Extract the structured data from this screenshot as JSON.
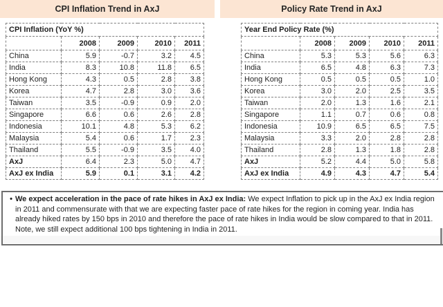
{
  "colors": {
    "header_bg": "#fce5d3",
    "table_border": "#7f7f7f",
    "note_border": "#6e6e6e",
    "text": "#1f1f1f"
  },
  "panels": [
    {
      "header": "CPI Inflation Trend in AxJ",
      "table_title": "CPI Inflation (YoY %)",
      "years": [
        "2008",
        "2009",
        "2010",
        "2011"
      ],
      "rows": [
        {
          "label": "China",
          "values": [
            "5.9",
            "-0.7",
            "3.2",
            "4.5"
          ],
          "bold_label": false,
          "bold_values": false
        },
        {
          "label": "India",
          "values": [
            "8.3",
            "10.8",
            "11.8",
            "6.5"
          ],
          "bold_label": false,
          "bold_values": false
        },
        {
          "label": "Hong Kong",
          "values": [
            "4.3",
            "0.5",
            "2.8",
            "3.8"
          ],
          "bold_label": false,
          "bold_values": false
        },
        {
          "label": "Korea",
          "values": [
            "4.7",
            "2.8",
            "3.0",
            "3.6"
          ],
          "bold_label": false,
          "bold_values": false
        },
        {
          "label": "Taiwan",
          "values": [
            "3.5",
            "-0.9",
            "0.9",
            "2.0"
          ],
          "bold_label": false,
          "bold_values": false
        },
        {
          "label": "Singapore",
          "values": [
            "6.6",
            "0.6",
            "2.6",
            "2.8"
          ],
          "bold_label": false,
          "bold_values": false
        },
        {
          "label": "Indonesia",
          "values": [
            "10.1",
            "4.8",
            "5.3",
            "6.2"
          ],
          "bold_label": false,
          "bold_values": false
        },
        {
          "label": "Malaysia",
          "values": [
            "5.4",
            "0.6",
            "1.7",
            "2.3"
          ],
          "bold_label": false,
          "bold_values": false
        },
        {
          "label": "Thailand",
          "values": [
            "5.5",
            "-0.9",
            "3.5",
            "4.0"
          ],
          "bold_label": false,
          "bold_values": false
        },
        {
          "label": "AxJ",
          "values": [
            "6.4",
            "2.3",
            "5.0",
            "4.7"
          ],
          "bold_label": true,
          "bold_values": false
        },
        {
          "label": "AxJ ex India",
          "values": [
            "5.9",
            "0.1",
            "3.1",
            "4.2"
          ],
          "bold_label": true,
          "bold_values": true
        }
      ]
    },
    {
      "header": "Policy Rate Trend in AxJ",
      "table_title": "Year End Policy Rate (%)",
      "years": [
        "2008",
        "2009",
        "2010",
        "2011"
      ],
      "rows": [
        {
          "label": "China",
          "values": [
            "5.3",
            "5.3",
            "5.6",
            "6.3"
          ],
          "bold_label": false,
          "bold_values": false
        },
        {
          "label": "India",
          "values": [
            "6.5",
            "4.8",
            "6.3",
            "7.3"
          ],
          "bold_label": false,
          "bold_values": false
        },
        {
          "label": "Hong Kong",
          "values": [
            "0.5",
            "0.5",
            "0.5",
            "1.0"
          ],
          "bold_label": false,
          "bold_values": false
        },
        {
          "label": "Korea",
          "values": [
            "3.0",
            "2.0",
            "2.5",
            "3.5"
          ],
          "bold_label": false,
          "bold_values": false
        },
        {
          "label": "Taiwan",
          "values": [
            "2.0",
            "1.3",
            "1.6",
            "2.1"
          ],
          "bold_label": false,
          "bold_values": false
        },
        {
          "label": "Singapore",
          "values": [
            "1.1",
            "0.7",
            "0.6",
            "0.8"
          ],
          "bold_label": false,
          "bold_values": false
        },
        {
          "label": "Indonesia",
          "values": [
            "10.9",
            "6.5",
            "6.5",
            "7.5"
          ],
          "bold_label": false,
          "bold_values": false
        },
        {
          "label": "Malaysia",
          "values": [
            "3.3",
            "2.0",
            "2.8",
            "2.8"
          ],
          "bold_label": false,
          "bold_values": false
        },
        {
          "label": "Thailand",
          "values": [
            "2.8",
            "1.3",
            "1.8",
            "2.8"
          ],
          "bold_label": false,
          "bold_values": false
        },
        {
          "label": "AxJ",
          "values": [
            "5.2",
            "4.4",
            "5.0",
            "5.8"
          ],
          "bold_label": true,
          "bold_values": false
        },
        {
          "label": "AxJ ex India",
          "values": [
            "4.9",
            "4.3",
            "4.7",
            "5.4"
          ],
          "bold_label": true,
          "bold_values": true
        }
      ]
    }
  ],
  "chart_data": [
    {
      "type": "table",
      "title": "CPI Inflation (YoY %)",
      "categories": [
        "China",
        "India",
        "Hong Kong",
        "Korea",
        "Taiwan",
        "Singapore",
        "Indonesia",
        "Malaysia",
        "Thailand",
        "AxJ",
        "AxJ ex India"
      ],
      "series": [
        {
          "name": "2008",
          "values": [
            5.9,
            8.3,
            4.3,
            4.7,
            3.5,
            6.6,
            10.1,
            5.4,
            5.5,
            6.4,
            5.9
          ]
        },
        {
          "name": "2009",
          "values": [
            -0.7,
            10.8,
            0.5,
            2.8,
            -0.9,
            0.6,
            4.8,
            0.6,
            -0.9,
            2.3,
            0.1
          ]
        },
        {
          "name": "2010",
          "values": [
            3.2,
            11.8,
            2.8,
            3.0,
            0.9,
            2.6,
            5.3,
            1.7,
            3.5,
            5.0,
            3.1
          ]
        },
        {
          "name": "2011",
          "values": [
            4.5,
            6.5,
            3.8,
            3.6,
            2.0,
            2.8,
            6.2,
            2.3,
            4.0,
            4.7,
            4.2
          ]
        }
      ]
    },
    {
      "type": "table",
      "title": "Year End Policy Rate (%)",
      "categories": [
        "China",
        "India",
        "Hong Kong",
        "Korea",
        "Taiwan",
        "Singapore",
        "Indonesia",
        "Malaysia",
        "Thailand",
        "AxJ",
        "AxJ ex India"
      ],
      "series": [
        {
          "name": "2008",
          "values": [
            5.3,
            6.5,
            0.5,
            3.0,
            2.0,
            1.1,
            10.9,
            3.3,
            2.8,
            5.2,
            4.9
          ]
        },
        {
          "name": "2009",
          "values": [
            5.3,
            4.8,
            0.5,
            2.0,
            1.3,
            0.7,
            6.5,
            2.0,
            1.3,
            4.4,
            4.3
          ]
        },
        {
          "name": "2010",
          "values": [
            5.6,
            6.3,
            0.5,
            2.5,
            1.6,
            0.6,
            6.5,
            2.8,
            1.8,
            5.0,
            4.7
          ]
        },
        {
          "name": "2011",
          "values": [
            6.3,
            7.3,
            1.0,
            3.5,
            2.1,
            0.8,
            7.5,
            2.8,
            2.8,
            5.8,
            5.4
          ]
        }
      ]
    }
  ],
  "note": {
    "bullet": "•",
    "bold": "We expect acceleration in the pace of rate hikes in AxJ ex India:",
    "text": " We expect Inflation to pick up in the AxJ ex India region in 2011 and commensurate with that we are expecting faster pace of rate hikes for the region in coming year. India has already hiked rates by 150 bps in 2010 and therefore the pace of rate hikes in India would be slow compared to that in 2011. Note, we still expect additional 100 bps tightening in India in 2011."
  }
}
